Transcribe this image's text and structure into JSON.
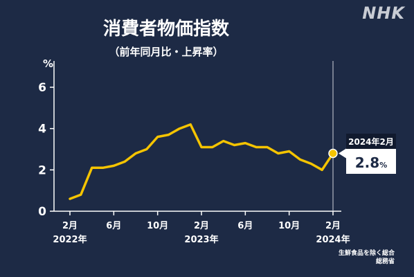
{
  "logo": "NHK",
  "chart_data": {
    "type": "line",
    "title": "消費者物価指数",
    "subtitle": "（前年同月比・上昇率）",
    "yunit": "%",
    "ylim": [
      0,
      6
    ],
    "yticks": [
      0,
      2,
      4,
      6
    ],
    "x": [
      "2022-02",
      "2022-03",
      "2022-04",
      "2022-05",
      "2022-06",
      "2022-07",
      "2022-08",
      "2022-09",
      "2022-10",
      "2022-11",
      "2022-12",
      "2023-01",
      "2023-02",
      "2023-03",
      "2023-04",
      "2023-05",
      "2023-06",
      "2023-07",
      "2023-08",
      "2023-09",
      "2023-10",
      "2023-11",
      "2023-12",
      "2024-01",
      "2024-02"
    ],
    "values": [
      0.6,
      0.8,
      2.1,
      2.1,
      2.2,
      2.4,
      2.8,
      3.0,
      3.6,
      3.7,
      4.0,
      4.2,
      3.1,
      3.1,
      3.4,
      3.2,
      3.3,
      3.1,
      3.1,
      2.8,
      2.9,
      2.5,
      2.3,
      2.0,
      2.8
    ],
    "xticks": [
      {
        "index": 0,
        "label": "2月",
        "year": "2022年"
      },
      {
        "index": 4,
        "label": "6月",
        "year": ""
      },
      {
        "index": 8,
        "label": "10月",
        "year": ""
      },
      {
        "index": 12,
        "label": "2月",
        "year": "2023年"
      },
      {
        "index": 16,
        "label": "6月",
        "year": ""
      },
      {
        "index": 20,
        "label": "10月",
        "year": ""
      },
      {
        "index": 24,
        "label": "2月",
        "year": "2024年"
      }
    ],
    "line_color": "#f5c400",
    "callout": {
      "date": "2024年2月",
      "value": "2.8",
      "unit": "%"
    },
    "source": [
      "生鮮食品を除く総合",
      "総務省"
    ],
    "grid": false
  }
}
